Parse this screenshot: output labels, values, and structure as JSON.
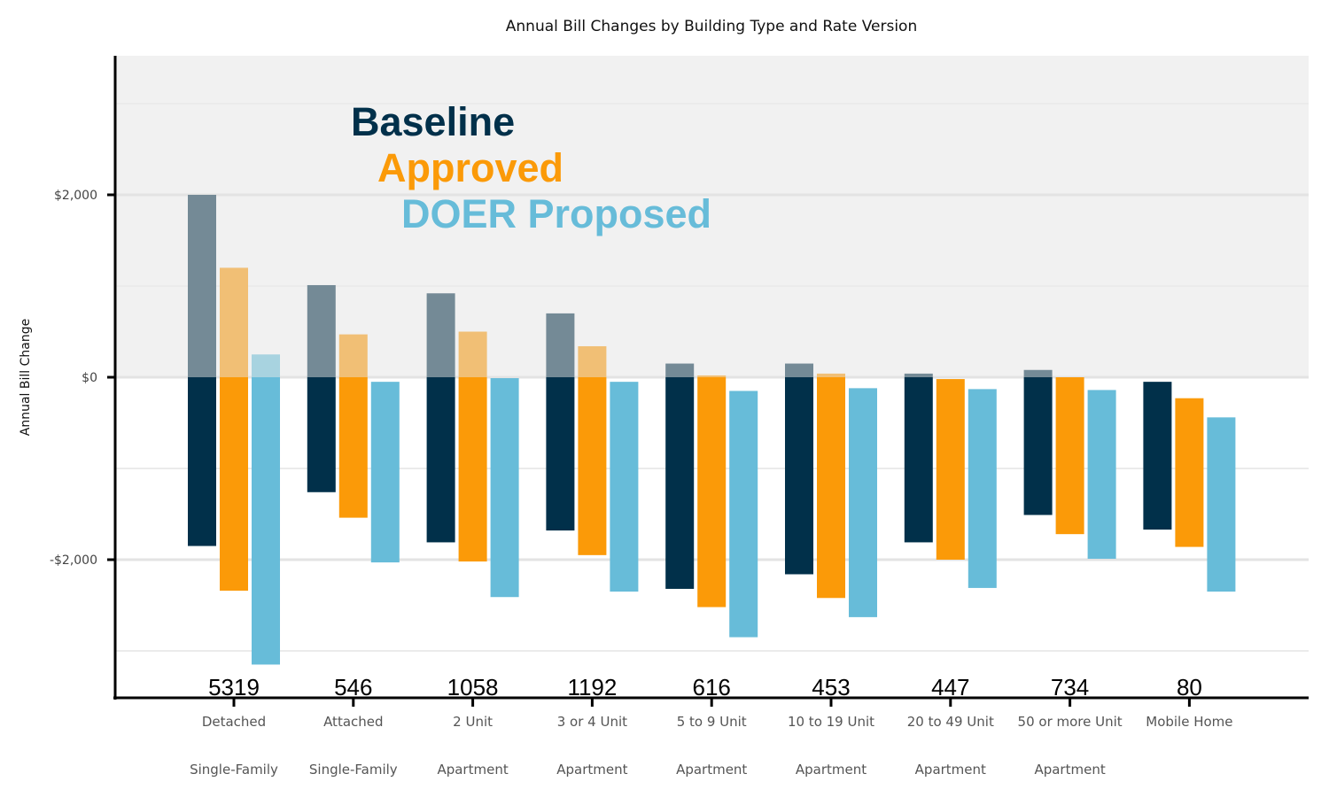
{
  "chart_data": {
    "type": "bar",
    "title": "Annual Bill Changes by Building Type and Rate Version",
    "ylabel": "Annual Bill Change",
    "xlabel": "",
    "ylim": [
      -3500,
      3500
    ],
    "yticks": [
      {
        "value": 2000,
        "label": "$2,000"
      },
      {
        "value": 0,
        "label": "$0"
      },
      {
        "value": -2000,
        "label": "-$2,000"
      }
    ],
    "grid": true,
    "categories": [
      {
        "line1": "Detached",
        "line2": "Single-Family",
        "count": "5319"
      },
      {
        "line1": "Attached",
        "line2": "Single-Family",
        "count": "546"
      },
      {
        "line1": "2 Unit",
        "line2": "Apartment",
        "count": "1058"
      },
      {
        "line1": "3 or 4 Unit",
        "line2": "Apartment",
        "count": "1192"
      },
      {
        "line1": "5 to 9 Unit",
        "line2": "Apartment",
        "count": "616"
      },
      {
        "line1": "10 to 19 Unit",
        "line2": "Apartment",
        "count": "453"
      },
      {
        "line1": "20 to 49 Unit",
        "line2": "Apartment",
        "count": "447"
      },
      {
        "line1": "50 or more Unit",
        "line2": "Apartment",
        "count": "734"
      },
      {
        "line1": "Mobile Home",
        "line2": "",
        "count": "80"
      }
    ],
    "series": [
      {
        "name": "Baseline",
        "color": "#01304a",
        "light_color": "#748a96",
        "high": [
          2000,
          1010,
          920,
          700,
          150,
          150,
          40,
          80,
          -50
        ],
        "low": [
          -1850,
          -1260,
          -1810,
          -1680,
          -2320,
          -2160,
          -1810,
          -1510,
          -1670
        ]
      },
      {
        "name": "Approved",
        "color": "#fb9a08",
        "light_color": "#f1bf75",
        "high": [
          1200,
          470,
          500,
          340,
          20,
          40,
          -20,
          0,
          -230
        ],
        "low": [
          -2340,
          -1540,
          -2020,
          -1950,
          -2520,
          -2420,
          -2000,
          -1720,
          -1860
        ]
      },
      {
        "name": "DOER Proposed",
        "color": "#67bcd9",
        "light_color": "#a8d3e0",
        "high": [
          250,
          -50,
          -10,
          -50,
          -150,
          -120,
          -130,
          -140,
          -440
        ],
        "low": [
          -3150,
          -2030,
          -2410,
          -2350,
          -2850,
          -2630,
          -2310,
          -1990,
          -2350
        ]
      }
    ],
    "legend_placement": "top-left (inside plot)"
  }
}
